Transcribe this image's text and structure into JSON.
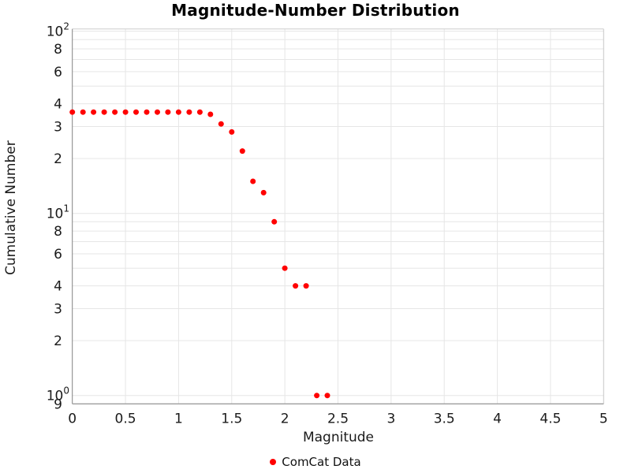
{
  "chart_data": {
    "type": "scatter",
    "title": "Magnitude-Number Distribution",
    "xlabel": "Magnitude",
    "ylabel": "Cumulative Number",
    "xscale": "linear",
    "yscale": "log",
    "xlim": [
      0,
      5
    ],
    "ylim": [
      0.9,
      103
    ],
    "grid": true,
    "legend_position": "bottom-center",
    "series": [
      {
        "name": "ComCat Data",
        "marker": "circle",
        "color": "#ff0000",
        "x": [
          0.0,
          0.1,
          0.2,
          0.3,
          0.4,
          0.5,
          0.6,
          0.7,
          0.8,
          0.9,
          1.0,
          1.1,
          1.2,
          1.3,
          1.4,
          1.5,
          1.6,
          1.7,
          1.8,
          1.9,
          2.0,
          2.1,
          2.2,
          2.3,
          2.4
        ],
        "y": [
          36,
          36,
          36,
          36,
          36,
          36,
          36,
          36,
          36,
          36,
          36,
          36,
          36,
          35,
          31,
          28,
          22,
          15,
          13,
          9,
          5,
          4,
          4,
          1,
          1
        ]
      }
    ],
    "xticks": [
      {
        "value": 0,
        "label": "0"
      },
      {
        "value": 0.5,
        "label": "0.5"
      },
      {
        "value": 1,
        "label": "1"
      },
      {
        "value": 1.5,
        "label": "1.5"
      },
      {
        "value": 2,
        "label": "2"
      },
      {
        "value": 2.5,
        "label": "2.5"
      },
      {
        "value": 3,
        "label": "3"
      },
      {
        "value": 3.5,
        "label": "3.5"
      },
      {
        "value": 4,
        "label": "4"
      },
      {
        "value": 4.5,
        "label": "4.5"
      },
      {
        "value": 5,
        "label": "5"
      }
    ],
    "yticks_major": [
      {
        "value": 100,
        "base": "10",
        "exp": "2"
      },
      {
        "value": 10,
        "base": "10",
        "exp": "1"
      },
      {
        "value": 1,
        "base": "10",
        "exp": "0"
      }
    ],
    "yticks_minor_labeled": [
      {
        "value": 80,
        "label": "8"
      },
      {
        "value": 60,
        "label": "6"
      },
      {
        "value": 40,
        "label": "4"
      },
      {
        "value": 30,
        "label": "3"
      },
      {
        "value": 20,
        "label": "2"
      },
      {
        "value": 8,
        "label": "8"
      },
      {
        "value": 6,
        "label": "6"
      },
      {
        "value": 4,
        "label": "4"
      },
      {
        "value": 3,
        "label": "3"
      },
      {
        "value": 2,
        "label": "2"
      },
      {
        "value": 0.9,
        "label": "9"
      }
    ]
  },
  "colors": {
    "marker": "#ff0000",
    "grid": "#e6e6e6",
    "axis_line": "#808080",
    "outline": "#cccccc",
    "tick_text": "#1a1a1a"
  }
}
